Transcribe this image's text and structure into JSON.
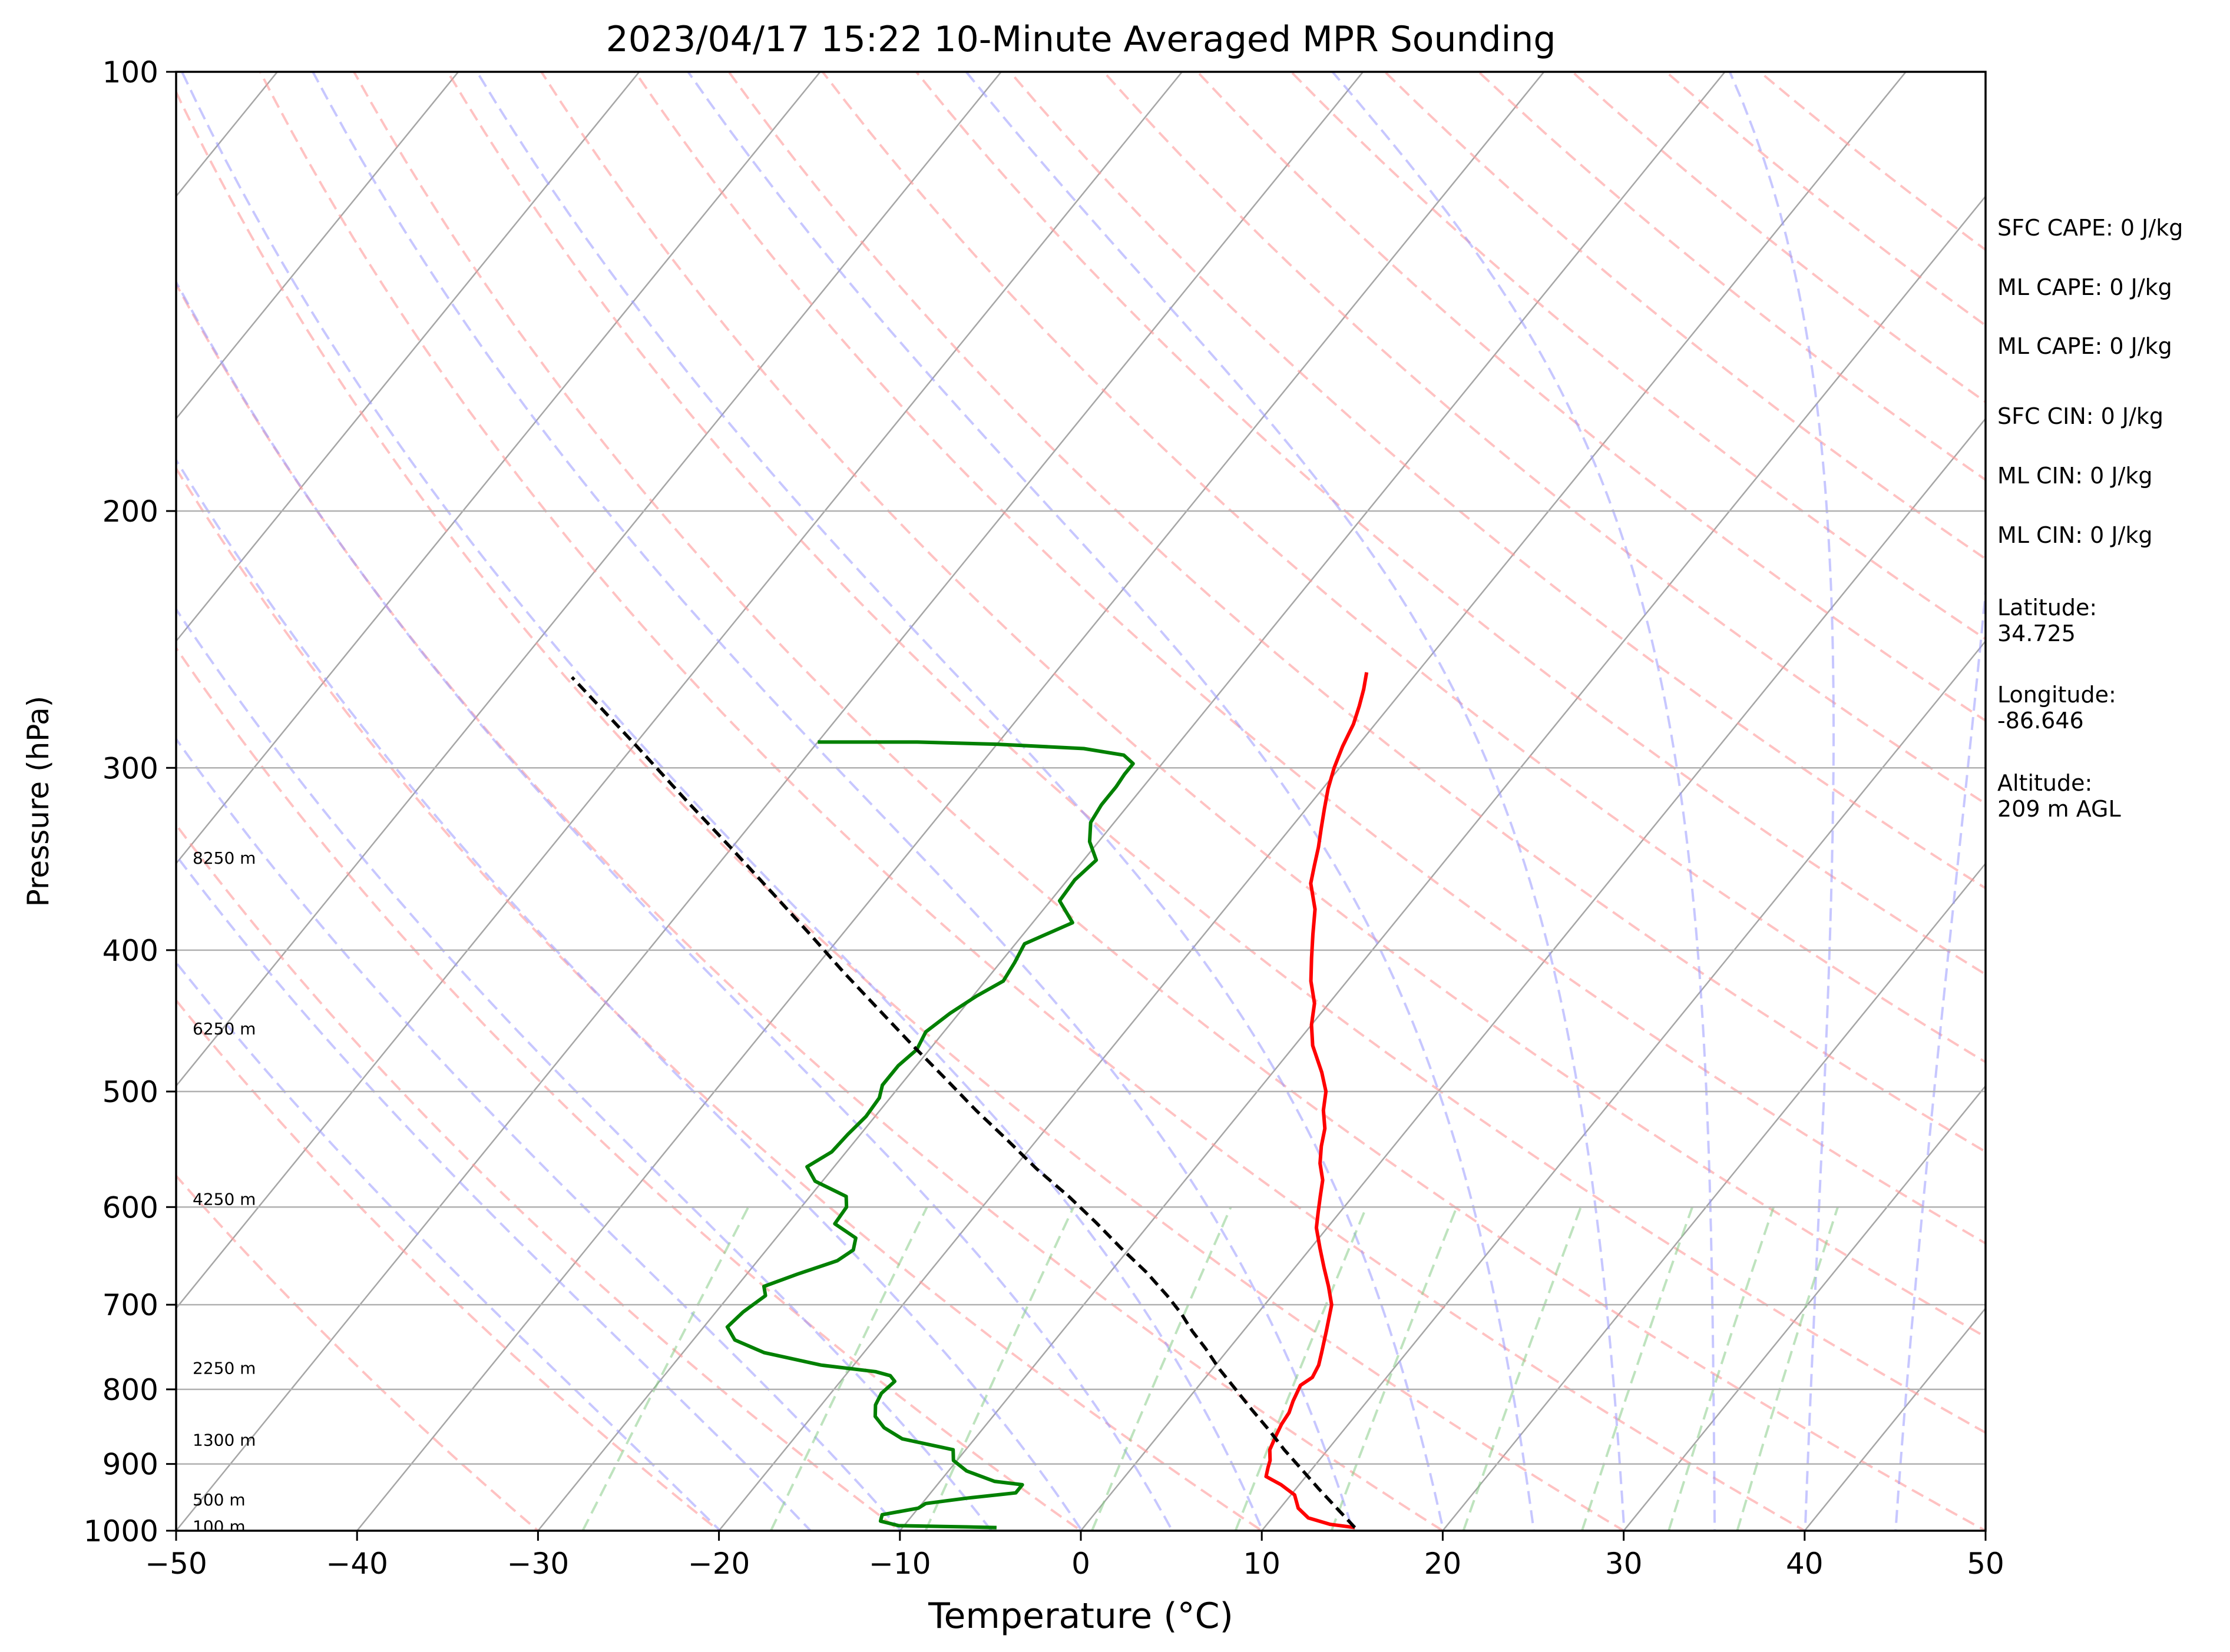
{
  "chart_data": {
    "type": "line",
    "subtype": "skew-t log-p sounding",
    "title": "2023/04/17 15:22 10-Minute Averaged MPR Sounding",
    "xlabel": "Temperature (°C)",
    "ylabel": "Pressure (hPa)",
    "xlim": [
      -50,
      50
    ],
    "ylim": [
      1000,
      100
    ],
    "y_scale": "log",
    "x_ticks": [
      -50,
      -40,
      -30,
      -20,
      -10,
      0,
      10,
      20,
      30,
      40,
      50
    ],
    "x_tick_labels": [
      "−50",
      "−40",
      "−30",
      "−20",
      "−10",
      "0",
      "10",
      "20",
      "30",
      "40",
      "50"
    ],
    "y_ticks": [
      1000,
      900,
      800,
      700,
      600,
      500,
      400,
      300,
      200,
      100
    ],
    "y_tick_labels": [
      "1000",
      "900",
      "800",
      "700",
      "600",
      "500",
      "400",
      "300",
      "200",
      "100"
    ],
    "horizontal_grid": true,
    "series": [
      {
        "role": "temperature",
        "color": "#ff0000",
        "points": [
          [
            15.0,
            995
          ],
          [
            13.5,
            990
          ],
          [
            12.0,
            980
          ],
          [
            11.0,
            965
          ],
          [
            10.2,
            945
          ],
          [
            9.0,
            930
          ],
          [
            7.8,
            918
          ],
          [
            7.5,
            905
          ],
          [
            7.3,
            895
          ],
          [
            6.8,
            880
          ],
          [
            6.5,
            860
          ],
          [
            6.3,
            845
          ],
          [
            6.2,
            830
          ],
          [
            5.9,
            815
          ],
          [
            5.6,
            795
          ],
          [
            5.9,
            785
          ],
          [
            5.7,
            770
          ],
          [
            5.3,
            755
          ],
          [
            4.6,
            730
          ],
          [
            3.7,
            700
          ],
          [
            2.7,
            680
          ],
          [
            1.6,
            660
          ],
          [
            0.5,
            640
          ],
          [
            -0.6,
            620
          ],
          [
            -1.2,
            605
          ],
          [
            -1.8,
            590
          ],
          [
            -2.4,
            575
          ],
          [
            -3.3,
            560
          ],
          [
            -4.0,
            545
          ],
          [
            -4.6,
            530
          ],
          [
            -5.5,
            515
          ],
          [
            -6.2,
            500
          ],
          [
            -7.3,
            485
          ],
          [
            -9.0,
            465
          ],
          [
            -10.0,
            450
          ],
          [
            -10.8,
            435
          ],
          [
            -12.0,
            420
          ],
          [
            -13.0,
            405
          ],
          [
            -14.0,
            390
          ],
          [
            -15.0,
            375
          ],
          [
            -16.4,
            360
          ],
          [
            -17.0,
            350
          ],
          [
            -17.6,
            340
          ],
          [
            -18.3,
            330
          ],
          [
            -19.0,
            320
          ],
          [
            -19.7,
            310
          ],
          [
            -20.3,
            300
          ],
          [
            -20.8,
            290
          ],
          [
            -21.2,
            280
          ],
          [
            -21.7,
            272
          ],
          [
            -22.2,
            265
          ],
          [
            -22.8,
            258
          ]
        ]
      },
      {
        "role": "dewpoint",
        "color": "#008000",
        "points": [
          [
            -4.8,
            995
          ],
          [
            -6.5,
            994
          ],
          [
            -10.3,
            992
          ],
          [
            -11.5,
            985
          ],
          [
            -11.7,
            975
          ],
          [
            -10.0,
            965
          ],
          [
            -9.8,
            958
          ],
          [
            -7.8,
            950
          ],
          [
            -5.3,
            942
          ],
          [
            -5.3,
            930
          ],
          [
            -7.0,
            925
          ],
          [
            -9.0,
            910
          ],
          [
            -10.2,
            895
          ],
          [
            -10.7,
            880
          ],
          [
            -14.0,
            865
          ],
          [
            -15.5,
            850
          ],
          [
            -16.5,
            835
          ],
          [
            -17.0,
            820
          ],
          [
            -17.2,
            805
          ],
          [
            -17.0,
            790
          ],
          [
            -17.5,
            783
          ],
          [
            -18.5,
            778
          ],
          [
            -21.8,
            770
          ],
          [
            -25.5,
            755
          ],
          [
            -27.7,
            740
          ],
          [
            -28.7,
            725
          ],
          [
            -28.5,
            708
          ],
          [
            -28.0,
            690
          ],
          [
            -28.5,
            680
          ],
          [
            -27.2,
            667
          ],
          [
            -25.6,
            653
          ],
          [
            -25.2,
            642
          ],
          [
            -25.6,
            630
          ],
          [
            -27.4,
            616
          ],
          [
            -27.5,
            600
          ],
          [
            -28.0,
            590
          ],
          [
            -30.4,
            576
          ],
          [
            -31.5,
            563
          ],
          [
            -30.8,
            550
          ],
          [
            -30.7,
            535
          ],
          [
            -30.5,
            520
          ],
          [
            -30.6,
            505
          ],
          [
            -31.0,
            495
          ],
          [
            -31.0,
            480
          ],
          [
            -30.7,
            468
          ],
          [
            -31.0,
            455
          ],
          [
            -30.5,
            442
          ],
          [
            -29.8,
            430
          ],
          [
            -29.0,
            420
          ],
          [
            -29.2,
            408
          ],
          [
            -29.5,
            396
          ],
          [
            -27.8,
            383
          ],
          [
            -29.5,
            370
          ],
          [
            -29.6,
            358
          ],
          [
            -29.3,
            347
          ],
          [
            -30.5,
            337
          ],
          [
            -31.3,
            327
          ],
          [
            -31.5,
            318
          ],
          [
            -31.5,
            309
          ],
          [
            -31.6,
            303
          ],
          [
            -31.6,
            298
          ],
          [
            -32.5,
            294
          ],
          [
            -35.0,
            291
          ],
          [
            -40.0,
            289
          ],
          [
            -44.5,
            288
          ],
          [
            -50.0,
            288
          ]
        ]
      },
      {
        "role": "parcel profile",
        "color": "#000000",
        "points": [
          [
            15.0,
            995
          ],
          [
            13.0,
            963
          ],
          [
            11.2,
            935
          ],
          [
            9.4,
            907
          ],
          [
            7.6,
            880
          ],
          [
            5.8,
            852
          ],
          [
            4.0,
            826
          ],
          [
            2.2,
            800
          ],
          [
            0.4,
            775
          ],
          [
            -1.3,
            750
          ],
          [
            -2.8,
            730
          ],
          [
            -3.5,
            720
          ],
          [
            -4.2,
            710
          ],
          [
            -5.8,
            690
          ],
          [
            -8.0,
            665
          ],
          [
            -10.5,
            640
          ],
          [
            -13.0,
            615
          ],
          [
            -15.7,
            590
          ],
          [
            -18.7,
            565
          ],
          [
            -21.6,
            540
          ],
          [
            -24.7,
            515
          ],
          [
            -27.8,
            490
          ],
          [
            -31.1,
            465
          ],
          [
            -34.5,
            440
          ],
          [
            -38.1,
            415
          ],
          [
            -41.8,
            390
          ],
          [
            -45.8,
            365
          ],
          [
            -50.1,
            340
          ],
          [
            -54.8,
            315
          ],
          [
            -59.8,
            290
          ],
          [
            -63.5,
            273
          ],
          [
            -66.5,
            260
          ]
        ]
      }
    ],
    "height_labels": [
      {
        "text": "100 m",
        "pressure": 994
      },
      {
        "text": "500 m",
        "pressure": 953
      },
      {
        "text": "1300 m",
        "pressure": 867
      },
      {
        "text": "2250 m",
        "pressure": 774
      },
      {
        "text": "4250 m",
        "pressure": 593
      },
      {
        "text": "6250 m",
        "pressure": 453
      },
      {
        "text": "8250 m",
        "pressure": 346
      }
    ],
    "annotations": [
      {
        "text": "SFC CAPE: 0 J/kg"
      },
      {
        "text": "ML CAPE: 0 J/kg"
      },
      {
        "text": "ML CAPE: 0 J/kg"
      },
      {
        "text": "SFC CIN: 0 J/kg"
      },
      {
        "text": "ML CIN: 0 J/kg"
      },
      {
        "text": "ML CIN: 0 J/kg"
      },
      {
        "text": "Latitude:\n34.725"
      },
      {
        "text": "Longitude:\n-86.646"
      },
      {
        "text": "Altitude:\n209 m AGL"
      }
    ],
    "background_lines": {
      "isotherms": {
        "color": "#a6a6a6",
        "values_c": [
          -150,
          -140,
          -130,
          -120,
          -110,
          -100,
          -90,
          -80,
          -70,
          -60,
          -50,
          -40,
          -30,
          -20,
          -10,
          0,
          10,
          20,
          30,
          40,
          50
        ]
      },
      "dry_adiabats": {
        "color": "#ff9999",
        "values_c": [
          -30,
          -20,
          -10,
          0,
          10,
          20,
          30,
          40,
          50,
          60,
          70,
          80,
          90,
          100,
          110,
          120,
          130,
          140,
          150,
          160,
          170,
          180,
          190,
          200
        ]
      },
      "moist_adiabats": {
        "color": "#9999ff",
        "values_c": [
          -20,
          -15,
          -10,
          -5,
          0,
          5,
          10,
          15,
          20,
          25,
          30,
          35,
          40,
          45
        ]
      },
      "mixing_ratios": {
        "color": "#88cc88",
        "values_gkg": [
          0.4,
          1,
          2,
          4,
          7,
          10,
          16,
          24,
          32,
          40
        ],
        "top_hpa": 600
      }
    }
  }
}
